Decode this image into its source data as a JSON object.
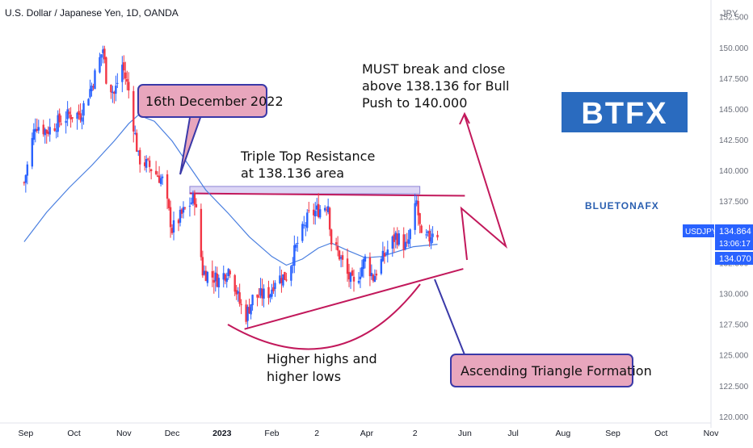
{
  "header": {
    "symbol_title": "U.S. Dollar / Japanese Yen, 1D, OANDA",
    "currency": "JPY"
  },
  "chart_data": {
    "type": "candlestick",
    "symbol": "USDJPY",
    "timeframe": "1D",
    "source": "OANDA",
    "y_axis_ticks": [
      "152.500",
      "150.000",
      "147.500",
      "145.000",
      "142.500",
      "140.000",
      "137.500",
      "135.000",
      "132.500",
      "130.000",
      "127.500",
      "125.000",
      "122.500",
      "120.000"
    ],
    "ylim": [
      119.6,
      153.2
    ],
    "x_axis_ticks": [
      "Sep",
      "Oct",
      "Nov",
      "Dec",
      "2023",
      "Feb",
      "2",
      "Apr",
      "2",
      "Jun",
      "Jul",
      "Aug",
      "Sep",
      "Oct",
      "Nov"
    ],
    "price_labels": {
      "symbol_tag": "USDJPY",
      "last_price": "134.864",
      "countdown": "13:06:17",
      "ma_value": "134.070",
      "accent_color": "#2962ff"
    },
    "candle_colors": {
      "up": "#2962ff",
      "down": "#f23645"
    },
    "moving_average_color": "#4a7fe0",
    "close_path": [
      {
        "date": "2022-08-31",
        "close": 139.0
      },
      {
        "date": "2022-09-07",
        "close": 143.8
      },
      {
        "date": "2022-09-14",
        "close": 143.2
      },
      {
        "date": "2022-09-21",
        "close": 143.9
      },
      {
        "date": "2022-09-28",
        "close": 144.5
      },
      {
        "date": "2022-10-05",
        "close": 144.6
      },
      {
        "date": "2022-10-12",
        "close": 146.9
      },
      {
        "date": "2022-10-19",
        "close": 149.9
      },
      {
        "date": "2022-10-21",
        "close": 147.6
      },
      {
        "date": "2022-10-26",
        "close": 146.2
      },
      {
        "date": "2022-10-31",
        "close": 148.6
      },
      {
        "date": "2022-11-04",
        "close": 146.5
      },
      {
        "date": "2022-11-10",
        "close": 141.0
      },
      {
        "date": "2022-11-17",
        "close": 140.3
      },
      {
        "date": "2022-11-25",
        "close": 139.2
      },
      {
        "date": "2022-12-01",
        "close": 135.2
      },
      {
        "date": "2022-12-08",
        "close": 136.6
      },
      {
        "date": "2022-12-15",
        "close": 137.8
      },
      {
        "date": "2022-12-20",
        "close": 131.8
      },
      {
        "date": "2022-12-30",
        "close": 131.1
      },
      {
        "date": "2023-01-06",
        "close": 132.1
      },
      {
        "date": "2023-01-12",
        "close": 129.2
      },
      {
        "date": "2023-01-16",
        "close": 128.2
      },
      {
        "date": "2023-01-20",
        "close": 129.6
      },
      {
        "date": "2023-01-31",
        "close": 130.1
      },
      {
        "date": "2023-02-03",
        "close": 131.2
      },
      {
        "date": "2023-02-10",
        "close": 131.4
      },
      {
        "date": "2023-02-17",
        "close": 134.1
      },
      {
        "date": "2023-02-24",
        "close": 136.3
      },
      {
        "date": "2023-03-02",
        "close": 136.8
      },
      {
        "date": "2023-03-08",
        "close": 137.3
      },
      {
        "date": "2023-03-10",
        "close": 134.2
      },
      {
        "date": "2023-03-15",
        "close": 133.1
      },
      {
        "date": "2023-03-20",
        "close": 131.5
      },
      {
        "date": "2023-03-24",
        "close": 130.6
      },
      {
        "date": "2023-03-31",
        "close": 132.8
      },
      {
        "date": "2023-04-05",
        "close": 131.3
      },
      {
        "date": "2023-04-12",
        "close": 133.1
      },
      {
        "date": "2023-04-19",
        "close": 134.7
      },
      {
        "date": "2023-04-26",
        "close": 133.7
      },
      {
        "date": "2023-05-02",
        "close": 137.4
      },
      {
        "date": "2023-05-05",
        "close": 134.3
      },
      {
        "date": "2023-05-10",
        "close": 134.5
      },
      {
        "date": "2023-05-12",
        "close": 135.2
      },
      {
        "date": "2023-05-15",
        "close": 134.9
      }
    ],
    "moving_average": [
      {
        "date": "2022-08-31",
        "value": 134.2
      },
      {
        "date": "2022-09-14",
        "value": 136.6
      },
      {
        "date": "2022-09-28",
        "value": 138.6
      },
      {
        "date": "2022-10-12",
        "value": 140.4
      },
      {
        "date": "2022-10-26",
        "value": 142.4
      },
      {
        "date": "2022-11-04",
        "value": 143.8
      },
      {
        "date": "2022-11-10",
        "value": 144.5
      },
      {
        "date": "2022-11-20",
        "value": 144.0
      },
      {
        "date": "2022-12-01",
        "value": 142.4
      },
      {
        "date": "2022-12-12",
        "value": 140.3
      },
      {
        "date": "2022-12-22",
        "value": 138.4
      },
      {
        "date": "2023-01-05",
        "value": 136.5
      },
      {
        "date": "2023-01-18",
        "value": 134.6
      },
      {
        "date": "2023-02-01",
        "value": 133.0
      },
      {
        "date": "2023-02-10",
        "value": 132.3
      },
      {
        "date": "2023-02-20",
        "value": 132.8
      },
      {
        "date": "2023-03-02",
        "value": 133.7
      },
      {
        "date": "2023-03-10",
        "value": 134.1
      },
      {
        "date": "2023-03-20",
        "value": 133.5
      },
      {
        "date": "2023-03-31",
        "value": 132.9
      },
      {
        "date": "2023-04-10",
        "value": 133.0
      },
      {
        "date": "2023-04-20",
        "value": 133.4
      },
      {
        "date": "2023-04-30",
        "value": 133.8
      },
      {
        "date": "2023-05-15",
        "value": 134.0
      }
    ],
    "annotations": {
      "date_callout": "16th December 2022",
      "resistance_label_line1": "Triple Top Resistance",
      "resistance_label_line2": "at 138.136 area",
      "breakout_line1": "MUST break and close",
      "breakout_line2": "above 138.136 for Bull",
      "breakout_line3": "Push to 140.000",
      "higher_line1": "Higher highs and",
      "higher_line2": "higher lows",
      "triangle_callout": "Ascending Triangle Formation",
      "resistance_level": 138.136,
      "resistance_zone": [
        138.1,
        138.7
      ],
      "support_line": [
        {
          "date": "2023-01-15",
          "price": 127.1
        },
        {
          "date": "2023-05-31",
          "price": 132.0
        }
      ],
      "callout_fill": "#e8a6bd",
      "callout_border": "#3a39a8",
      "annotation_color": "#c2185b"
    },
    "logos": {
      "btfx": "BTFX",
      "bluetona": "BLUETONAFX"
    }
  }
}
